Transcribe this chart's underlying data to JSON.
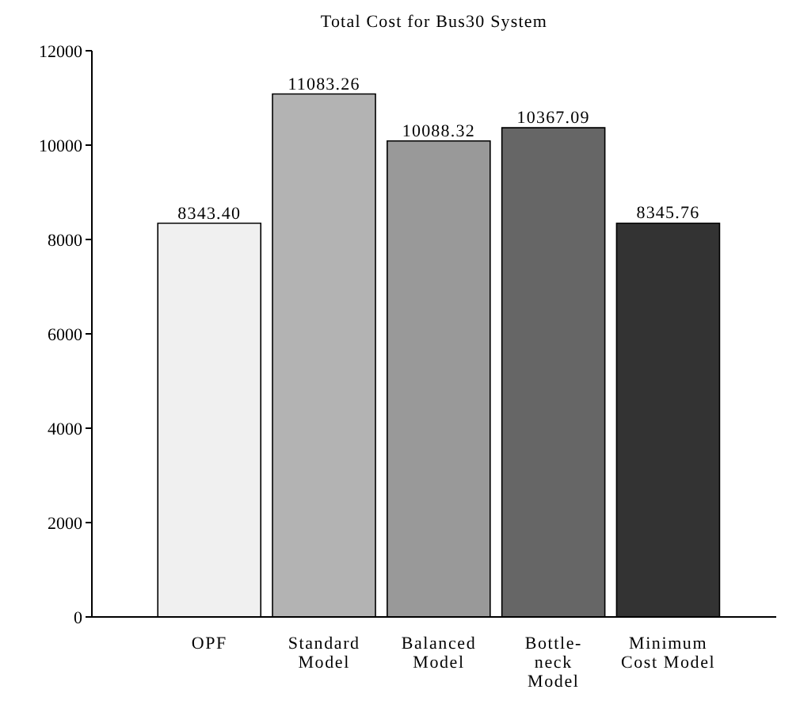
{
  "chart_data": {
    "type": "bar",
    "title": "Total Cost for Bus30 System",
    "categories": [
      "OPF",
      "Standard\nModel",
      "Balanced\nModel",
      "Bottle-\nneck\nModel",
      "Minimum\nCost Model"
    ],
    "values": [
      8343.4,
      11083.26,
      10088.32,
      10367.09,
      8345.76
    ],
    "value_labels": [
      "8343.40",
      "11083.26",
      "10088.32",
      "10367.09",
      "8345.76"
    ],
    "colors": [
      "#f0f0f0",
      "#b3b3b3",
      "#999999",
      "#666666",
      "#333333"
    ],
    "ylim": [
      0,
      12000
    ],
    "yticks": [
      0,
      2000,
      4000,
      6000,
      8000,
      10000,
      12000
    ],
    "grid": false
  }
}
